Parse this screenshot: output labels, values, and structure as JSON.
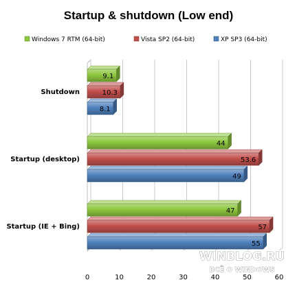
{
  "chart_data": {
    "type": "bar",
    "orientation": "horizontal",
    "title": "Startup & shutdown  (Low end)",
    "categories": [
      "Shutdown",
      "Startup (desktop)",
      "Startup (IE + Bing)"
    ],
    "series": [
      {
        "name": "Windows 7 RTM  (64-bit)",
        "color": "#8dc63f",
        "values": [
          9.1,
          44,
          47
        ]
      },
      {
        "name": "Vista SP2 (64-bit)",
        "color": "#c0504d",
        "values": [
          10.3,
          53.6,
          57
        ]
      },
      {
        "name": "XP SP3 (64-bit)",
        "color": "#4f81bd",
        "values": [
          8.1,
          49,
          55
        ]
      }
    ],
    "xlim": [
      0,
      60
    ],
    "xticks": [
      0,
      10,
      20,
      30,
      40,
      50,
      60
    ],
    "grid": true,
    "legend_position": "top"
  },
  "watermark": {
    "line1": "WINBLOG.RU",
    "line2": "ВСЁ О WINDOWS"
  }
}
